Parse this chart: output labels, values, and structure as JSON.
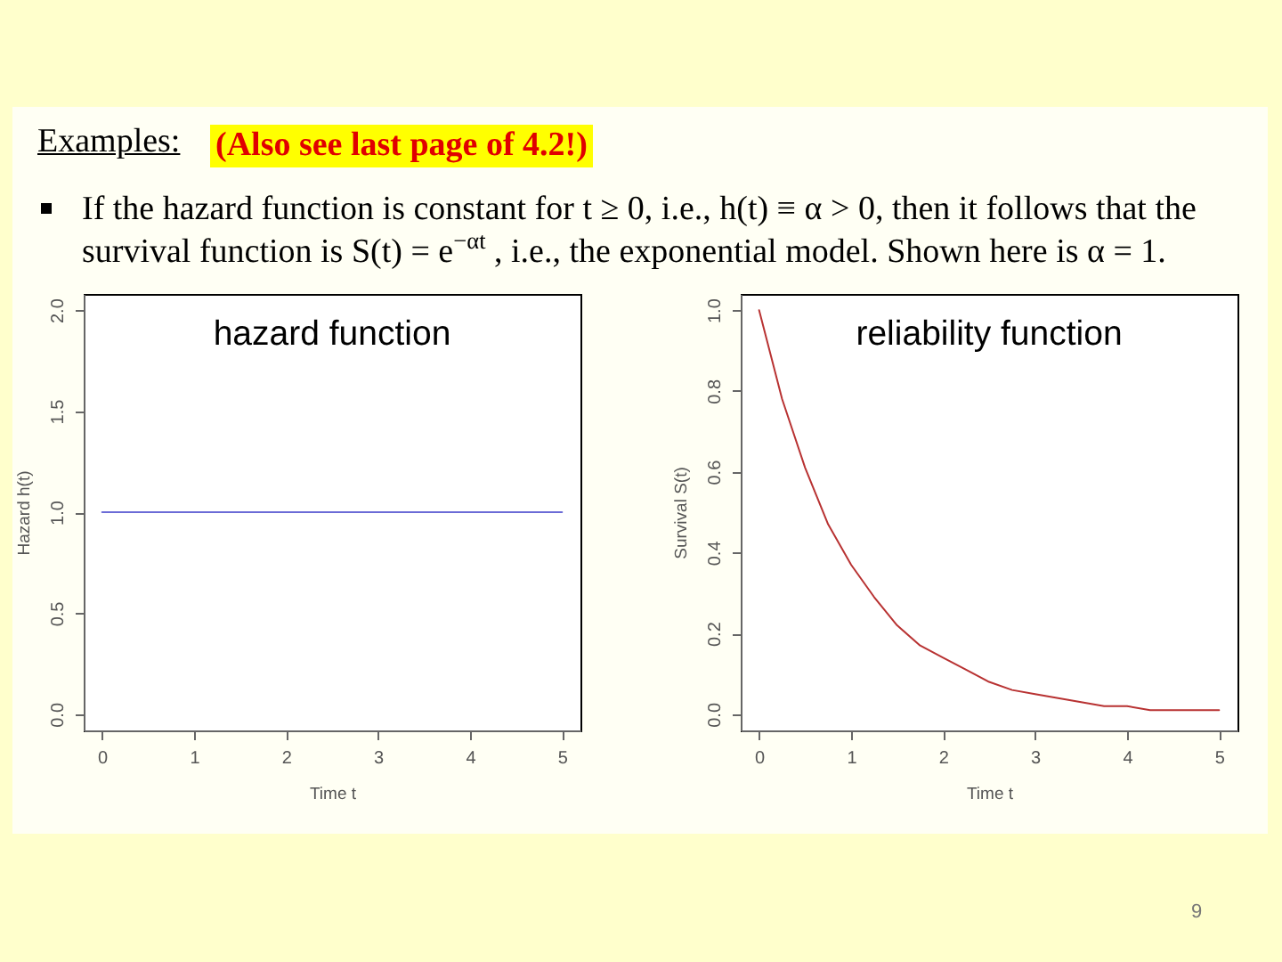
{
  "chart_data": [
    {
      "type": "other",
      "title": "Examples:",
      "annotations": [
        "(Also see last page of 4.2!)",
        "If the hazard function is constant for t ≥ 0, i.e., h(t) ≡ α > 0, then it follows that the survival function is S(t) = e$^{−αt}$ , i.e., the exponential model.  Shown here is α = 1.",
        "9"
      ]
    },
    {
      "type": "line",
      "title": "hazard function",
      "xlabel": "Time t",
      "ylabel": "Hazard h(t)",
      "x": [
        0,
        5
      ],
      "values": [
        1,
        1
      ],
      "color": "#6b6bd6",
      "xlim": [
        -0.2,
        5.2
      ],
      "ylim": [
        -0.08,
        2.08
      ],
      "xticks": [
        0,
        1,
        2,
        3,
        4,
        5
      ],
      "yticks": [
        {
          "value": 0,
          "label": "0.0"
        },
        0.5,
        {
          "value": 1,
          "label": "1.0"
        },
        1.5,
        {
          "value": 2,
          "label": "2.0"
        }
      ]
    },
    {
      "type": "line",
      "title": "reliability function",
      "xlabel": "Time t",
      "ylabel": "Survival S(t)",
      "x": [
        0,
        0.25,
        0.5,
        0.75,
        1,
        1.25,
        1.5,
        1.75,
        2,
        2.25,
        2.5,
        2.75,
        3,
        3.25,
        3.5,
        3.75,
        4,
        4.25,
        4.5,
        4.75,
        5
      ],
      "values": [
        1,
        0.78,
        0.61,
        0.47,
        0.37,
        0.29,
        0.22,
        0.17,
        0.14,
        0.11,
        0.08,
        0.06,
        0.05,
        0.04,
        0.03,
        0.02,
        0.02,
        0.01,
        0.01,
        0.01,
        0.01
      ],
      "color": "#b83232",
      "xlim": [
        -0.2,
        5.2
      ],
      "ylim": [
        -0.04,
        1.04
      ],
      "xticks": [
        0,
        1,
        2,
        3,
        4,
        5
      ],
      "yticks": [
        {
          "value": 0,
          "label": "0.0"
        },
        0.2,
        0.4,
        0.6,
        0.8,
        {
          "value": 1,
          "label": "1.0"
        }
      ]
    }
  ]
}
